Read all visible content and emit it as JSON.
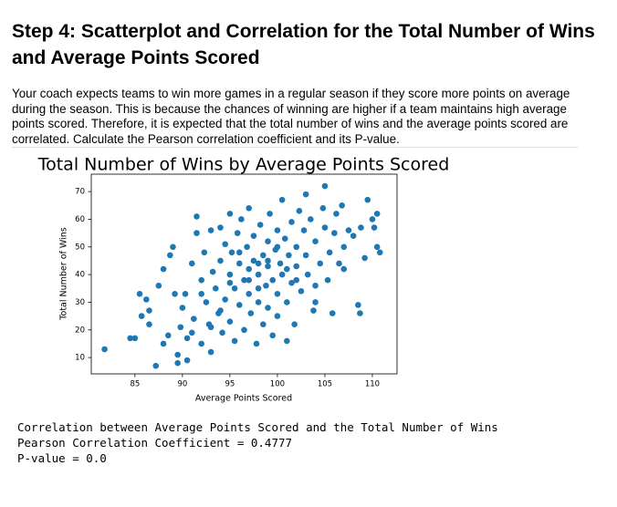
{
  "header": {
    "title": "Step 4: Scatterplot and Correlation for the Total Number of Wins and Average Points Scored"
  },
  "paragraph": "Your coach expects teams to win more games in a regular season if they score more points on average during the season. This is because the chances of winning are higher if a team maintains high average points scored. Therefore, it is expected that the total number of wins and the average points scored are correlated. Calculate the Pearson correlation coefficient and its P-value.",
  "chart_data": {
    "type": "scatter",
    "title": "Total Number of Wins by Average Points Scored",
    "x_label": "Average Points Scored",
    "y_label": "Total Number of Wins",
    "color": "#1f77b4",
    "xlim": [
      80.4,
      112.6
    ],
    "ylim": [
      4.1,
      76.3
    ],
    "xticks": [
      85,
      90,
      95,
      100,
      105,
      110
    ],
    "yticks": [
      10,
      20,
      30,
      40,
      50,
      60,
      70
    ],
    "x": [
      81.8,
      84.5,
      85,
      85.5,
      85.7,
      86.2,
      86.5,
      86.5,
      87.2,
      87.5,
      88,
      88,
      88.7,
      89,
      89.2,
      88.5,
      89.5,
      89.5,
      89.8,
      90,
      90.3,
      90.5,
      90.5,
      91,
      91.2,
      91.5,
      91.5,
      92,
      92,
      92.3,
      92.5,
      92.8,
      93,
      93,
      93.2,
      93.5,
      93.8,
      94,
      94,
      94.2,
      94.5,
      94.5,
      95,
      95,
      95,
      95.2,
      95.5,
      95.5,
      95.8,
      96,
      96,
      96.2,
      96.5,
      96.5,
      96.8,
      97,
      97,
      97.2,
      97.5,
      97.5,
      97.8,
      98,
      98,
      98.2,
      98.5,
      98.5,
      98.8,
      99,
      99,
      99,
      99.2,
      99.5,
      99.5,
      99.8,
      100,
      100,
      100,
      100.3,
      100.5,
      100.5,
      100.8,
      101,
      101,
      101.2,
      101.5,
      101.5,
      101.8,
      102,
      102,
      102.3,
      102.5,
      102.8,
      103,
      103,
      103.2,
      103.5,
      103.8,
      104,
      104,
      104.5,
      104.8,
      105,
      105,
      105.3,
      105.5,
      105.8,
      106,
      106.2,
      106.5,
      106.8,
      107,
      107.5,
      108,
      108.5,
      108.7,
      108.8,
      109.2,
      109.5,
      110,
      110.2,
      110.5,
      110.8,
      110.5,
      107,
      104,
      98,
      97,
      96,
      99,
      100,
      101,
      95,
      97,
      98,
      102,
      94,
      93,
      91,
      92
    ],
    "y": [
      13,
      17,
      17,
      33,
      25,
      31,
      27,
      22,
      7,
      36,
      15,
      42,
      47,
      50,
      33,
      18,
      8,
      11,
      21,
      28,
      33,
      17,
      9,
      44,
      24,
      61,
      55,
      38,
      15,
      48,
      30,
      22,
      56,
      12,
      41,
      35,
      26,
      45,
      57,
      19,
      51,
      31,
      62,
      40,
      23,
      48,
      16,
      35,
      55,
      29,
      44,
      60,
      38,
      20,
      50,
      33,
      64,
      26,
      45,
      54,
      15,
      40,
      30,
      58,
      47,
      22,
      36,
      52,
      43,
      28,
      62,
      38,
      18,
      49,
      56,
      33,
      25,
      44,
      67,
      40,
      53,
      30,
      16,
      47,
      59,
      37,
      22,
      50,
      43,
      63,
      34,
      56,
      47,
      69,
      40,
      60,
      27,
      52,
      36,
      44,
      64,
      57,
      72,
      38,
      48,
      26,
      55,
      62,
      44,
      65,
      50,
      56,
      54,
      29,
      26,
      57,
      46,
      67,
      60,
      57,
      50,
      48,
      62,
      42,
      30,
      35,
      42,
      48,
      45,
      50,
      42,
      37,
      38,
      44,
      38,
      27,
      21,
      19,
      33
    ]
  },
  "output": [
    "Correlation between Average Points Scored and the Total Number of Wins",
    "Pearson Correlation Coefficient = 0.4777",
    "P-value = 0.0"
  ]
}
